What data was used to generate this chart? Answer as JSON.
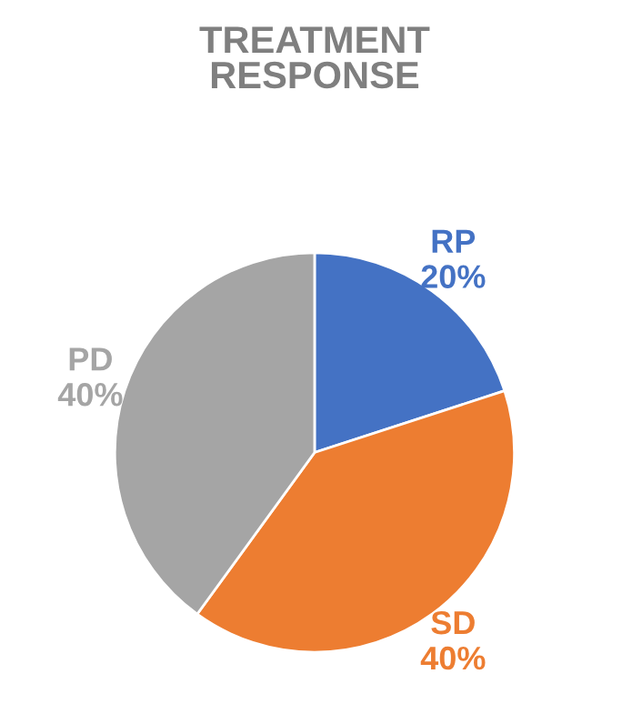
{
  "chart_data": {
    "type": "pie",
    "title": "TREATMENT\nRESPONSE",
    "categories": [
      "RP",
      "SD",
      "PD"
    ],
    "values": [
      20,
      40,
      40
    ],
    "value_labels": [
      "20%",
      "40%",
      "40%"
    ],
    "colors": [
      "#4472c4",
      "#ed7d31",
      "#a5a5a5"
    ]
  }
}
